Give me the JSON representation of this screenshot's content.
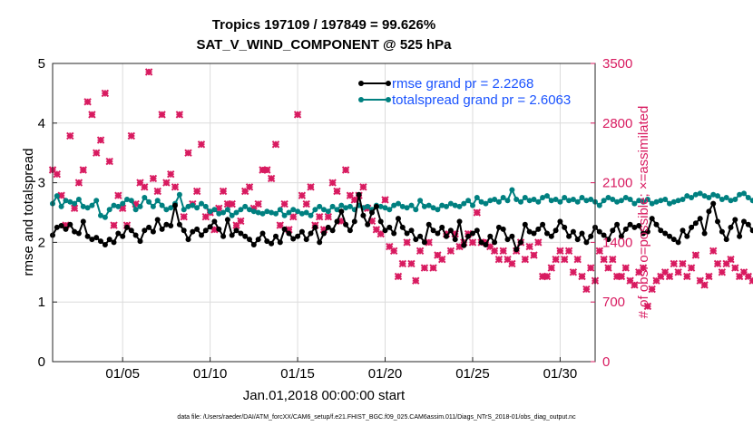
{
  "chart_data": {
    "type": "line",
    "title": "Tropics 197109 / 197849 = 99.626%",
    "subtitle": "SAT_V_WIND_COMPONENT @ 525 hPa",
    "xlabel": "Jan.01,2018 00:00:00 start",
    "ylabel": "rmse and totalspread",
    "ylabel_right": "# of obs: o=possible; ×=assimilated",
    "x_ticks": [
      "01/05",
      "01/10",
      "01/15",
      "01/20",
      "01/25",
      "01/30"
    ],
    "x_tick_days": [
      5,
      10,
      15,
      20,
      25,
      30
    ],
    "xlim": [
      1,
      32
    ],
    "ylim": [
      0,
      5
    ],
    "y_ticks": [
      "0",
      "1",
      "2",
      "3",
      "4",
      "5"
    ],
    "y2lim": [
      0,
      3500
    ],
    "y2_ticks": [
      "0",
      "700",
      "1400",
      "2100",
      "2800",
      "3500"
    ],
    "grid": true,
    "legend_position": "top-right",
    "colors": {
      "rmse": "#000000",
      "spread": "#008080",
      "obs": "#d81b60",
      "legend_text": "#1a53ff"
    },
    "series": [
      {
        "name": "rmse grand pr = 2.2268",
        "key": "rmse",
        "x_start": 1.0,
        "x_step": 0.25,
        "values": [
          2.12,
          2.25,
          2.28,
          2.22,
          2.3,
          2.18,
          2.15,
          2.35,
          2.1,
          2.05,
          2.08,
          2.02,
          1.96,
          2.05,
          2.0,
          2.15,
          2.1,
          2.25,
          2.2,
          2.12,
          2.02,
          2.2,
          2.25,
          2.18,
          2.38,
          2.22,
          2.3,
          2.28,
          2.62,
          2.3,
          2.2,
          2.05,
          2.18,
          2.22,
          2.12,
          2.2,
          2.26,
          2.35,
          2.22,
          2.1,
          2.38,
          2.12,
          2.2,
          2.15,
          2.1,
          2.05,
          1.96,
          2.05,
          2.15,
          2.02,
          1.98,
          2.1,
          2.0,
          2.22,
          2.15,
          2.06,
          2.1,
          2.18,
          2.05,
          2.15,
          2.25,
          2.0,
          2.15,
          2.25,
          2.2,
          2.35,
          2.52,
          2.3,
          2.2,
          2.35,
          2.8,
          2.45,
          2.3,
          2.5,
          2.6,
          2.35,
          2.2,
          2.25,
          2.15,
          2.4,
          2.25,
          2.15,
          2.2,
          2.05,
          2.1,
          2.0,
          2.3,
          2.2,
          2.15,
          2.25,
          2.1,
          2.2,
          2.05,
          2.35,
          1.95,
          2.1,
          2.15,
          2.2,
          2.0,
          1.96,
          2.1,
          2.0,
          2.25,
          2.22,
          2.05,
          2.1,
          1.88,
          2.0,
          2.3,
          2.18,
          2.15,
          2.22,
          2.3,
          2.15,
          2.1,
          2.2,
          2.35,
          2.25,
          2.1,
          2.18,
          2.05,
          2.15,
          2.0,
          2.1,
          2.25,
          2.18,
          2.12,
          2.05,
          2.2,
          2.3,
          2.1,
          2.22,
          2.3,
          2.25,
          2.28,
          2.15,
          2.18,
          2.4,
          2.3,
          2.2,
          2.15,
          2.1,
          2.05,
          2.0,
          2.2,
          2.1,
          2.25,
          2.32,
          2.4,
          2.15,
          2.52,
          2.65,
          2.35,
          2.18,
          2.05,
          2.25,
          2.38,
          2.1,
          2.35,
          2.3,
          2.2,
          2.15,
          2.25,
          2.05,
          2.35,
          2.1,
          2.0,
          2.15,
          2.3,
          2.2,
          2.4,
          2.55,
          2.45,
          2.62,
          2.5,
          2.45,
          2.58,
          2.7,
          2.4,
          2.3,
          2.25
        ]
      },
      {
        "name": "totalspread grand pr = 2.6063",
        "key": "spread",
        "x_start": 1.0,
        "x_step": 0.25,
        "values": [
          2.65,
          2.78,
          2.6,
          2.7,
          2.68,
          2.65,
          2.72,
          2.6,
          2.58,
          2.62,
          2.7,
          2.45,
          2.42,
          2.55,
          2.62,
          2.6,
          2.65,
          2.72,
          2.7,
          2.55,
          2.6,
          2.75,
          2.68,
          2.6,
          2.7,
          2.62,
          2.55,
          2.58,
          2.65,
          2.8,
          2.55,
          2.6,
          2.62,
          2.58,
          2.65,
          2.6,
          2.52,
          2.55,
          2.48,
          2.5,
          2.55,
          2.45,
          2.5,
          2.55,
          2.6,
          2.55,
          2.52,
          2.5,
          2.48,
          2.52,
          2.5,
          2.48,
          2.55,
          2.45,
          2.5,
          2.55,
          2.52,
          2.48,
          2.5,
          2.45,
          2.55,
          2.6,
          2.55,
          2.52,
          2.6,
          2.55,
          2.62,
          2.58,
          2.6,
          2.55,
          2.62,
          2.58,
          2.6,
          2.55,
          2.62,
          2.6,
          2.58,
          2.55,
          2.62,
          2.65,
          2.6,
          2.58,
          2.62,
          2.55,
          2.7,
          2.6,
          2.62,
          2.58,
          2.55,
          2.62,
          2.6,
          2.65,
          2.62,
          2.6,
          2.65,
          2.7,
          2.62,
          2.75,
          2.68,
          2.65,
          2.7,
          2.72,
          2.68,
          2.75,
          2.7,
          2.88,
          2.72,
          2.68,
          2.75,
          2.7,
          2.72,
          2.68,
          2.75,
          2.78,
          2.7,
          2.72,
          2.68,
          2.75,
          2.7,
          2.72,
          2.68,
          2.75,
          2.7,
          2.72,
          2.68,
          2.62,
          2.7,
          2.75,
          2.72,
          2.68,
          2.7,
          2.75,
          2.72,
          2.65,
          2.7,
          2.68,
          2.72,
          2.65,
          2.68,
          2.7,
          2.72,
          2.65,
          2.68,
          2.7,
          2.72,
          2.78,
          2.75,
          2.8,
          2.82,
          2.78,
          2.75,
          2.8,
          2.78,
          2.72,
          2.75,
          2.7,
          2.72,
          2.8,
          2.82,
          2.75,
          2.7,
          2.68,
          2.72,
          2.75,
          2.7,
          2.68,
          2.75,
          2.72,
          2.78,
          2.72,
          2.8,
          2.82,
          2.85,
          2.88,
          2.9,
          2.88,
          2.85,
          3.12,
          2.9
        ]
      },
      {
        "name": "obs assimilated",
        "key": "obs",
        "axis": "right",
        "marker": "x",
        "x_start": 1.0,
        "x_step": 0.25,
        "values": [
          2250,
          2200,
          1950,
          1600,
          2650,
          1800,
          2100,
          2250,
          3050,
          2900,
          2450,
          2600,
          3150,
          2350,
          1600,
          1950,
          1800,
          1600,
          2650,
          1850,
          2100,
          2050,
          3400,
          2150,
          2000,
          2900,
          2100,
          2200,
          2050,
          2900,
          1700,
          2450,
          1850,
          2000,
          2550,
          1700,
          1750,
          1550,
          1800,
          2000,
          1850,
          1850,
          1600,
          1650,
          2000,
          2050,
          1800,
          1850,
          2250,
          2250,
          2150,
          2550,
          1600,
          1850,
          1550,
          1700,
          2900,
          1950,
          1850,
          2050,
          1600,
          1700,
          1550,
          1700,
          2100,
          2000,
          1650,
          2250,
          1950,
          1900,
          1950,
          2050,
          1800,
          1650,
          1550,
          1500,
          1900,
          1350,
          1300,
          1000,
          1150,
          1400,
          1150,
          950,
          1300,
          1100,
          1400,
          1100,
          1250,
          1200,
          1500,
          1300,
          1500,
          1350,
          1400,
          1500,
          1400,
          1750,
          1400,
          1400,
          1350,
          1300,
          1200,
          1300,
          1200,
          1150,
          1300,
          1400,
          1200,
          1350,
          1250,
          1400,
          1000,
          1000,
          1100,
          1200,
          1300,
          1200,
          1300,
          1050,
          1200,
          1000,
          850,
          1100,
          950,
          1300,
          1200,
          1100,
          1200,
          1000,
          1000,
          1100,
          950,
          900,
          1050,
          1100,
          650,
          850,
          950,
          1000,
          1050,
          1000,
          1150,
          1050,
          1150,
          1000,
          1100,
          1250,
          950,
          900,
          1000,
          1300,
          1150,
          1050,
          1150,
          1200,
          1100,
          1000,
          1050,
          1000,
          950,
          1100,
          1050,
          800,
          1000,
          1200,
          1100,
          1050,
          1150,
          950,
          900,
          1200,
          1150,
          1150,
          1250,
          1300,
          1050,
          950,
          1100,
          0
        ]
      }
    ],
    "footer": "data file: /Users/raeder/DAI/ATM_forcXX/CAM6_setup/f.e21.FHIST_BGC.f09_025.CAM6assim.011/Diags_NTrS_2018-01/obs_diag_output.nc"
  }
}
